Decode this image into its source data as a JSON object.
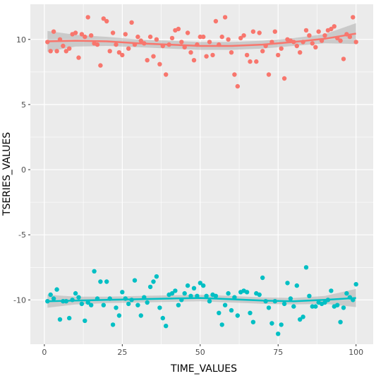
{
  "chart_data": {
    "type": "scatter",
    "xlabel": "TIME_VALUES",
    "ylabel": "TSERIES_VALUES",
    "xlim": [
      -4.5,
      105.5
    ],
    "ylim": [
      -13.4,
      12.7
    ],
    "x_ticks": [
      0,
      25,
      50,
      75,
      100
    ],
    "y_ticks": [
      -10,
      -5,
      0,
      5,
      10
    ],
    "grid": true,
    "legend": "none",
    "panel_color": "#ebebeb",
    "series": [
      {
        "color": "#f8766d",
        "x": [
          1,
          2,
          3,
          4,
          5,
          6,
          7,
          8,
          9,
          10,
          11,
          12,
          13,
          14,
          15,
          16,
          17,
          18,
          19,
          20,
          21,
          22,
          23,
          24,
          25,
          26,
          27,
          28,
          29,
          30,
          31,
          32,
          33,
          34,
          35,
          36,
          37,
          38,
          39,
          40,
          41,
          42,
          43,
          44,
          45,
          46,
          47,
          48,
          49,
          50,
          51,
          52,
          53,
          54,
          55,
          56,
          57,
          58,
          59,
          60,
          61,
          62,
          63,
          64,
          65,
          66,
          67,
          68,
          69,
          70,
          71,
          72,
          73,
          74,
          75,
          76,
          77,
          78,
          79,
          80,
          81,
          82,
          83,
          84,
          85,
          86,
          87,
          88,
          89,
          90,
          91,
          92,
          93,
          94,
          95,
          96,
          97,
          98,
          99,
          100
        ],
        "y": [
          9.8,
          9.1,
          10.6,
          9.1,
          10.0,
          9.5,
          9.1,
          9.3,
          10.4,
          10.5,
          8.6,
          10.4,
          10.2,
          11.7,
          10.3,
          9.7,
          9.6,
          8.0,
          11.6,
          11.4,
          9.1,
          10.5,
          9.6,
          9.0,
          8.8,
          10.4,
          9.3,
          11.3,
          9.6,
          10.2,
          9.9,
          9.7,
          8.4,
          10.2,
          8.7,
          10.0,
          8.1,
          9.5,
          7.3,
          9.6,
          10.1,
          10.7,
          10.8,
          9.8,
          9.4,
          10.5,
          9.0,
          8.4,
          9.6,
          10.2,
          10.2,
          8.7,
          9.8,
          8.8,
          11.4,
          9.6,
          10.2,
          11.7,
          10.0,
          9.0,
          7.3,
          6.4,
          10.1,
          10.3,
          8.8,
          8.3,
          10.6,
          8.3,
          10.5,
          9.1,
          9.5,
          7.3,
          9.8,
          10.6,
          8.8,
          9.3,
          7.0,
          10.0,
          9.9,
          9.8,
          9.5,
          9.0,
          9.8,
          10.7,
          10.3,
          9.7,
          9.4,
          10.6,
          9.9,
          10.3,
          10.7,
          10.8,
          11.0,
          10.1,
          9.9,
          8.5,
          10.4,
          10.2,
          11.7,
          9.8
        ]
      },
      {
        "color": "#00bfc4",
        "x": [
          1,
          2,
          3,
          4,
          5,
          6,
          7,
          8,
          9,
          10,
          11,
          12,
          13,
          14,
          15,
          16,
          17,
          18,
          19,
          20,
          21,
          22,
          23,
          24,
          25,
          26,
          27,
          28,
          29,
          30,
          31,
          32,
          33,
          34,
          35,
          36,
          37,
          38,
          39,
          40,
          41,
          42,
          43,
          44,
          45,
          46,
          47,
          48,
          49,
          50,
          51,
          52,
          53,
          54,
          55,
          56,
          57,
          58,
          59,
          60,
          61,
          62,
          63,
          64,
          65,
          66,
          67,
          68,
          69,
          70,
          71,
          72,
          73,
          74,
          75,
          76,
          77,
          78,
          79,
          80,
          81,
          82,
          83,
          84,
          85,
          86,
          87,
          88,
          89,
          90,
          91,
          92,
          93,
          94,
          95,
          96,
          97,
          98,
          99,
          100
        ],
        "y": [
          -10.1,
          -9.6,
          -9.9,
          -9.2,
          -11.5,
          -10.1,
          -10.1,
          -11.4,
          -10.0,
          -9.5,
          -9.8,
          -10.3,
          -11.6,
          -10.2,
          -10.4,
          -7.8,
          -9.9,
          -8.6,
          -10.4,
          -8.6,
          -9.9,
          -11.9,
          -10.6,
          -11.2,
          -9.4,
          -9.9,
          -10.3,
          -10.0,
          -8.5,
          -10.4,
          -11.2,
          -9.8,
          -10.2,
          -9.0,
          -8.6,
          -8.2,
          -10.6,
          -11.4,
          -12.0,
          -9.6,
          -9.5,
          -9.3,
          -10.4,
          -10.0,
          -9.5,
          -8.9,
          -9.7,
          -9.1,
          -9.7,
          -8.7,
          -8.9,
          -9.7,
          -10.1,
          -9.6,
          -9.7,
          -11.0,
          -11.9,
          -10.4,
          -9.5,
          -10.8,
          -9.8,
          -11.2,
          -9.4,
          -9.3,
          -9.4,
          -11.0,
          -11.7,
          -9.5,
          -9.6,
          -8.3,
          -10.1,
          -10.6,
          -11.8,
          -10.1,
          -12.6,
          -11.9,
          -10.3,
          -8.7,
          -9.9,
          -10.5,
          -8.9,
          -11.5,
          -11.3,
          -7.5,
          -9.7,
          -10.5,
          -10.5,
          -10.2,
          -10.3,
          -10.2,
          -10.0,
          -9.3,
          -10.5,
          -10.4,
          -11.7,
          -10.6,
          -9.5,
          -9.8,
          -10.0,
          -8.8
        ]
      }
    ],
    "trend_lines": [
      {
        "color": "#f8766d",
        "x": [
          1,
          10,
          20,
          30,
          40,
          50,
          60,
          70,
          80,
          90,
          100
        ],
        "y": [
          9.85,
          9.9,
          9.85,
          9.7,
          9.6,
          9.5,
          9.5,
          9.6,
          9.8,
          10.05,
          10.45
        ],
        "band_lower": [
          9.05,
          9.45,
          9.5,
          9.4,
          9.3,
          9.2,
          9.2,
          9.3,
          9.5,
          9.7,
          9.65
        ],
        "band_upper": [
          10.65,
          10.35,
          10.2,
          10.0,
          9.9,
          9.8,
          9.8,
          9.9,
          10.1,
          10.4,
          11.25
        ]
      },
      {
        "color": "#00bfc4",
        "x": [
          1,
          10,
          20,
          30,
          40,
          50,
          60,
          70,
          80,
          90,
          100
        ],
        "y": [
          -10.1,
          -10.05,
          -10.0,
          -9.95,
          -9.9,
          -9.85,
          -9.95,
          -10.05,
          -10.1,
          -10.0,
          -9.85
        ],
        "band_lower": [
          -10.6,
          -10.35,
          -10.25,
          -10.2,
          -10.15,
          -10.1,
          -10.2,
          -10.3,
          -10.35,
          -10.3,
          -10.55
        ],
        "band_upper": [
          -9.6,
          -9.75,
          -9.75,
          -9.7,
          -9.65,
          -9.6,
          -9.7,
          -9.8,
          -9.85,
          -9.7,
          -9.15
        ]
      }
    ]
  }
}
